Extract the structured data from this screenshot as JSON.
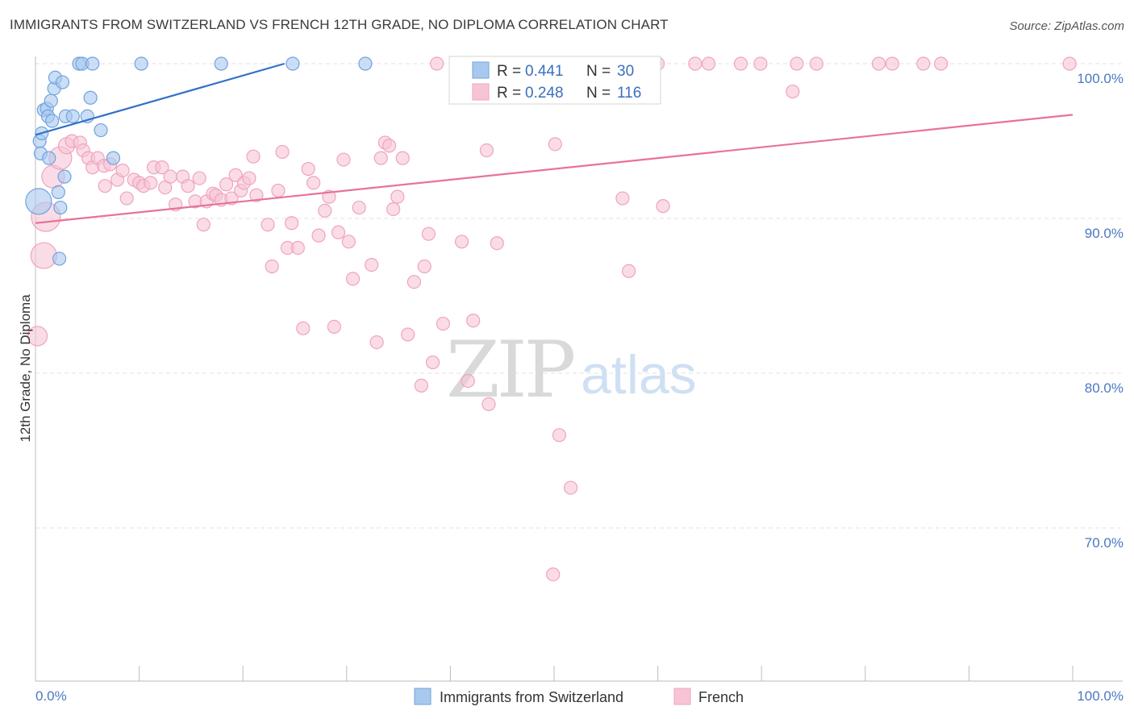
{
  "title": "IMMIGRANTS FROM SWITZERLAND VS FRENCH 12TH GRADE, NO DIPLOMA CORRELATION CHART",
  "source": "Source: ZipAtlas.com",
  "watermark": {
    "zip": "ZIP",
    "atlas": "atlas"
  },
  "legend_stats": [
    {
      "r_label": "R = ",
      "r_value": "0.441",
      "n_label": "N = ",
      "n_value": "30"
    },
    {
      "r_label": "R = ",
      "r_value": "0.248",
      "n_label": "N = ",
      "n_value": "116"
    }
  ],
  "chart_data": {
    "type": "scatter",
    "xlabel": "",
    "ylabel": "12th Grade, No Diploma",
    "xlim": [
      0,
      100
    ],
    "ylim": [
      60,
      100.5
    ],
    "x_tick_labels": [
      {
        "value": 0,
        "label": "0.0%"
      },
      {
        "value": 100,
        "label": "100.0%"
      }
    ],
    "y_tick_labels": [
      {
        "value": 100,
        "label": "100.0%"
      },
      {
        "value": 90,
        "label": "90.0%"
      },
      {
        "value": 80,
        "label": "80.0%"
      },
      {
        "value": 70,
        "label": "70.0%"
      }
    ],
    "grid": true,
    "legend_position": "bottom",
    "series": [
      {
        "name": "Immigrants from Switzerland",
        "color": "#6fa3df",
        "fill": "#a9c8ee",
        "line_color": "#2f72c9",
        "trend": {
          "x0": 0,
          "y0": 95.4,
          "x1": 24,
          "y1": 100
        },
        "points": [
          [
            0.3,
            91.1,
            16
          ],
          [
            0.4,
            95.0,
            8
          ],
          [
            0.5,
            94.2,
            8
          ],
          [
            0.6,
            95.5,
            8
          ],
          [
            0.8,
            97.0,
            8
          ],
          [
            1.1,
            97.1,
            8
          ],
          [
            1.2,
            96.6,
            8
          ],
          [
            1.3,
            93.9,
            8
          ],
          [
            1.5,
            97.6,
            8
          ],
          [
            1.6,
            96.3,
            8
          ],
          [
            1.8,
            98.4,
            8
          ],
          [
            1.9,
            99.1,
            8
          ],
          [
            2.2,
            91.7,
            8
          ],
          [
            2.3,
            87.4,
            8
          ],
          [
            2.4,
            90.7,
            8
          ],
          [
            2.6,
            98.8,
            8
          ],
          [
            2.8,
            92.7,
            8
          ],
          [
            2.9,
            96.6,
            8
          ],
          [
            3.6,
            96.6,
            8
          ],
          [
            4.2,
            100.0,
            8
          ],
          [
            4.5,
            100.0,
            8
          ],
          [
            5.0,
            96.6,
            8
          ],
          [
            5.3,
            97.8,
            8
          ],
          [
            5.5,
            100.0,
            8
          ],
          [
            6.3,
            95.7,
            8
          ],
          [
            7.5,
            93.9,
            8
          ],
          [
            10.2,
            100.0,
            8
          ],
          [
            17.9,
            100.0,
            8
          ],
          [
            24.8,
            100.0,
            8
          ],
          [
            31.8,
            100.0,
            8
          ]
        ]
      },
      {
        "name": "French",
        "color": "#f0a3bd",
        "fill": "#f7c4d5",
        "line_color": "#e8729a",
        "trend": {
          "x0": 0,
          "y0": 89.7,
          "x1": 100,
          "y1": 96.7
        },
        "points": [
          [
            0.2,
            82.4,
            12
          ],
          [
            0.8,
            87.6,
            16
          ],
          [
            1.0,
            90.1,
            18
          ],
          [
            1.7,
            92.7,
            14
          ],
          [
            2.4,
            93.9,
            14
          ],
          [
            3.0,
            94.7,
            10
          ],
          [
            3.5,
            95.0,
            8
          ],
          [
            4.3,
            94.9,
            8
          ],
          [
            4.6,
            94.4,
            8
          ],
          [
            5.1,
            93.9,
            8
          ],
          [
            5.5,
            93.3,
            8
          ],
          [
            6.0,
            93.9,
            8
          ],
          [
            6.6,
            93.4,
            8
          ],
          [
            6.7,
            92.1,
            8
          ],
          [
            7.2,
            93.5,
            8
          ],
          [
            7.9,
            92.5,
            8
          ],
          [
            8.4,
            93.1,
            8
          ],
          [
            8.8,
            91.3,
            8
          ],
          [
            9.5,
            92.5,
            8
          ],
          [
            10.0,
            92.3,
            8
          ],
          [
            10.4,
            92.1,
            8
          ],
          [
            11.1,
            92.3,
            8
          ],
          [
            11.4,
            93.3,
            8
          ],
          [
            12.2,
            93.3,
            8
          ],
          [
            12.5,
            92.0,
            8
          ],
          [
            13.0,
            92.7,
            8
          ],
          [
            13.5,
            90.9,
            8
          ],
          [
            14.2,
            92.7,
            8
          ],
          [
            14.7,
            92.1,
            8
          ],
          [
            15.4,
            91.1,
            8
          ],
          [
            15.8,
            92.6,
            8
          ],
          [
            16.2,
            89.6,
            8
          ],
          [
            16.5,
            91.1,
            8
          ],
          [
            17.1,
            91.6,
            8
          ],
          [
            17.4,
            91.5,
            8
          ],
          [
            17.9,
            91.2,
            8
          ],
          [
            18.4,
            92.2,
            8
          ],
          [
            18.9,
            91.3,
            8
          ],
          [
            19.3,
            92.8,
            8
          ],
          [
            19.8,
            91.8,
            8
          ],
          [
            20.1,
            92.3,
            8
          ],
          [
            20.6,
            92.6,
            8
          ],
          [
            21.0,
            94.0,
            8
          ],
          [
            21.3,
            91.5,
            8
          ],
          [
            22.4,
            89.6,
            8
          ],
          [
            22.8,
            86.9,
            8
          ],
          [
            23.4,
            91.8,
            8
          ],
          [
            23.8,
            94.3,
            8
          ],
          [
            24.3,
            88.1,
            8
          ],
          [
            24.7,
            89.7,
            8
          ],
          [
            25.3,
            88.1,
            8
          ],
          [
            25.8,
            82.9,
            8
          ],
          [
            26.3,
            93.2,
            8
          ],
          [
            26.8,
            92.3,
            8
          ],
          [
            27.3,
            88.9,
            8
          ],
          [
            27.9,
            90.5,
            8
          ],
          [
            28.3,
            91.4,
            8
          ],
          [
            28.8,
            83.0,
            8
          ],
          [
            29.2,
            89.1,
            8
          ],
          [
            29.7,
            93.8,
            8
          ],
          [
            30.2,
            88.5,
            8
          ],
          [
            30.6,
            86.1,
            8
          ],
          [
            31.2,
            90.7,
            8
          ],
          [
            32.4,
            87.0,
            8
          ],
          [
            32.9,
            82.0,
            8
          ],
          [
            33.3,
            93.9,
            8
          ],
          [
            33.7,
            94.9,
            8
          ],
          [
            34.1,
            94.7,
            8
          ],
          [
            34.5,
            90.6,
            8
          ],
          [
            34.9,
            91.4,
            8
          ],
          [
            35.4,
            93.9,
            8
          ],
          [
            35.9,
            82.5,
            8
          ],
          [
            36.5,
            85.9,
            8
          ],
          [
            37.2,
            79.2,
            8
          ],
          [
            37.5,
            86.9,
            8
          ],
          [
            37.9,
            89.0,
            8
          ],
          [
            38.3,
            80.7,
            8
          ],
          [
            38.7,
            100.0,
            8
          ],
          [
            39.3,
            83.2,
            8
          ],
          [
            40.8,
            100.0,
            8
          ],
          [
            41.1,
            88.5,
            8
          ],
          [
            41.7,
            79.5,
            8
          ],
          [
            42.2,
            83.4,
            8
          ],
          [
            42.5,
            100.0,
            8
          ],
          [
            43.5,
            94.4,
            8
          ],
          [
            43.7,
            78.0,
            8
          ],
          [
            44.5,
            88.4,
            8
          ],
          [
            46.4,
            100.0,
            8
          ],
          [
            48.1,
            100.0,
            8
          ],
          [
            48.9,
            100.0,
            8
          ],
          [
            49.9,
            67.0,
            8
          ],
          [
            50.1,
            94.8,
            8
          ],
          [
            50.5,
            76.0,
            8
          ],
          [
            51.6,
            72.6,
            8
          ],
          [
            53.1,
            100.0,
            8
          ],
          [
            55.0,
            100.0,
            8
          ],
          [
            56.6,
            91.3,
            8
          ],
          [
            57.2,
            86.6,
            8
          ],
          [
            59.4,
            100.0,
            8
          ],
          [
            60.0,
            100.0,
            8
          ],
          [
            60.5,
            90.8,
            8
          ],
          [
            63.6,
            100.0,
            8
          ],
          [
            64.9,
            100.0,
            8
          ],
          [
            68.0,
            100.0,
            8
          ],
          [
            69.9,
            100.0,
            8
          ],
          [
            73.0,
            98.2,
            8
          ],
          [
            73.4,
            100.0,
            8
          ],
          [
            75.3,
            100.0,
            8
          ],
          [
            81.3,
            100.0,
            8
          ],
          [
            82.6,
            100.0,
            8
          ],
          [
            85.6,
            100.0,
            8
          ],
          [
            87.3,
            100.0,
            8
          ],
          [
            99.7,
            100.0,
            8
          ]
        ]
      }
    ]
  }
}
